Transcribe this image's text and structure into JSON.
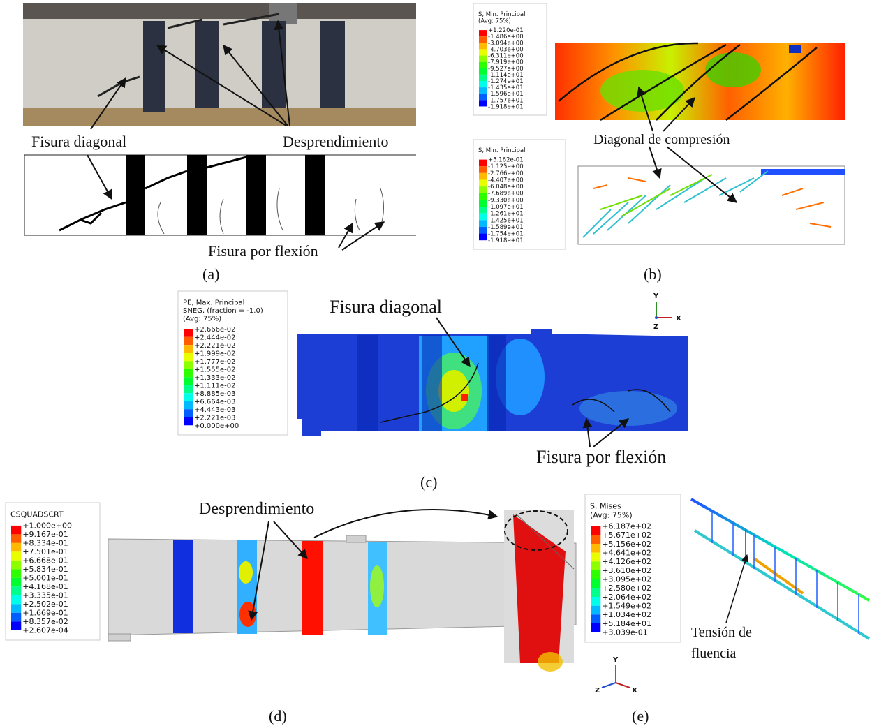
{
  "panel_a": {
    "label": "(a)",
    "annotations": [
      "Fisura diagonal",
      "Desprendimiento",
      "Fisura por flexión"
    ]
  },
  "panel_b": {
    "label": "(b)",
    "legend_top": {
      "title": [
        "S, Min. Principal",
        "(Avg: 75%)"
      ],
      "values": [
        "+1.220e-01",
        "-1.486e+00",
        "-3.094e+00",
        "-4.703e+00",
        "-6.311e+00",
        "-7.919e+00",
        "-9.527e+00",
        "-1.114e+01",
        "-1.274e+01",
        "-1.435e+01",
        "-1.596e+01",
        "-1.757e+01",
        "-1.918e+01"
      ]
    },
    "legend_bottom": {
      "title": [
        "S, Min. Principal"
      ],
      "values": [
        "+5.162e-01",
        "-1.125e+00",
        "-2.766e+00",
        "-4.407e+00",
        "-6.048e+00",
        "-7.689e+00",
        "-9.330e+00",
        "-1.097e+01",
        "-1.261e+01",
        "-1.425e+01",
        "-1.589e+01",
        "-1.754e+01",
        "-1.918e+01"
      ]
    },
    "annotations": [
      "Diagonal de compresión"
    ]
  },
  "panel_c": {
    "label": "(c)",
    "legend": {
      "title": [
        "PE, Max. Principal",
        "SNEG, (fraction = -1.0)",
        "(Avg: 75%)"
      ],
      "values": [
        "+2.666e-02",
        "+2.444e-02",
        "+2.221e-02",
        "+1.999e-02",
        "+1.777e-02",
        "+1.555e-02",
        "+1.333e-02",
        "+1.111e-02",
        "+8.885e-03",
        "+6.664e-03",
        "+4.443e-03",
        "+2.221e-03",
        "+0.000e+00"
      ]
    },
    "triad": [
      "Y",
      "X",
      "Z"
    ],
    "annotations": [
      "Fisura diagonal",
      "Fisura por flexión"
    ]
  },
  "panel_d": {
    "label": "(d)",
    "legend": {
      "title": [
        "CSQUADSCRT"
      ],
      "values": [
        "+1.000e+00",
        "+9.167e-01",
        "+8.334e-01",
        "+7.501e-01",
        "+6.668e-01",
        "+5.834e-01",
        "+5.001e-01",
        "+4.168e-01",
        "+3.335e-01",
        "+2.502e-01",
        "+1.669e-01",
        "+8.357e-02",
        "+2.607e-04"
      ]
    },
    "annotations": [
      "Desprendimiento"
    ]
  },
  "panel_e": {
    "label": "(e)",
    "legend": {
      "title": [
        "S, Mises",
        "(Avg: 75%)"
      ],
      "values": [
        "+6.187e+02",
        "+5.671e+02",
        "+5.156e+02",
        "+4.641e+02",
        "+4.126e+02",
        "+3.610e+02",
        "+3.095e+02",
        "+2.580e+02",
        "+2.064e+02",
        "+1.549e+02",
        "+1.034e+02",
        "+5.184e+01",
        "+3.039e-01"
      ]
    },
    "triad": [
      "Y",
      "Z",
      "X"
    ],
    "annotations": [
      "Tensión de",
      "fluencia"
    ]
  }
}
